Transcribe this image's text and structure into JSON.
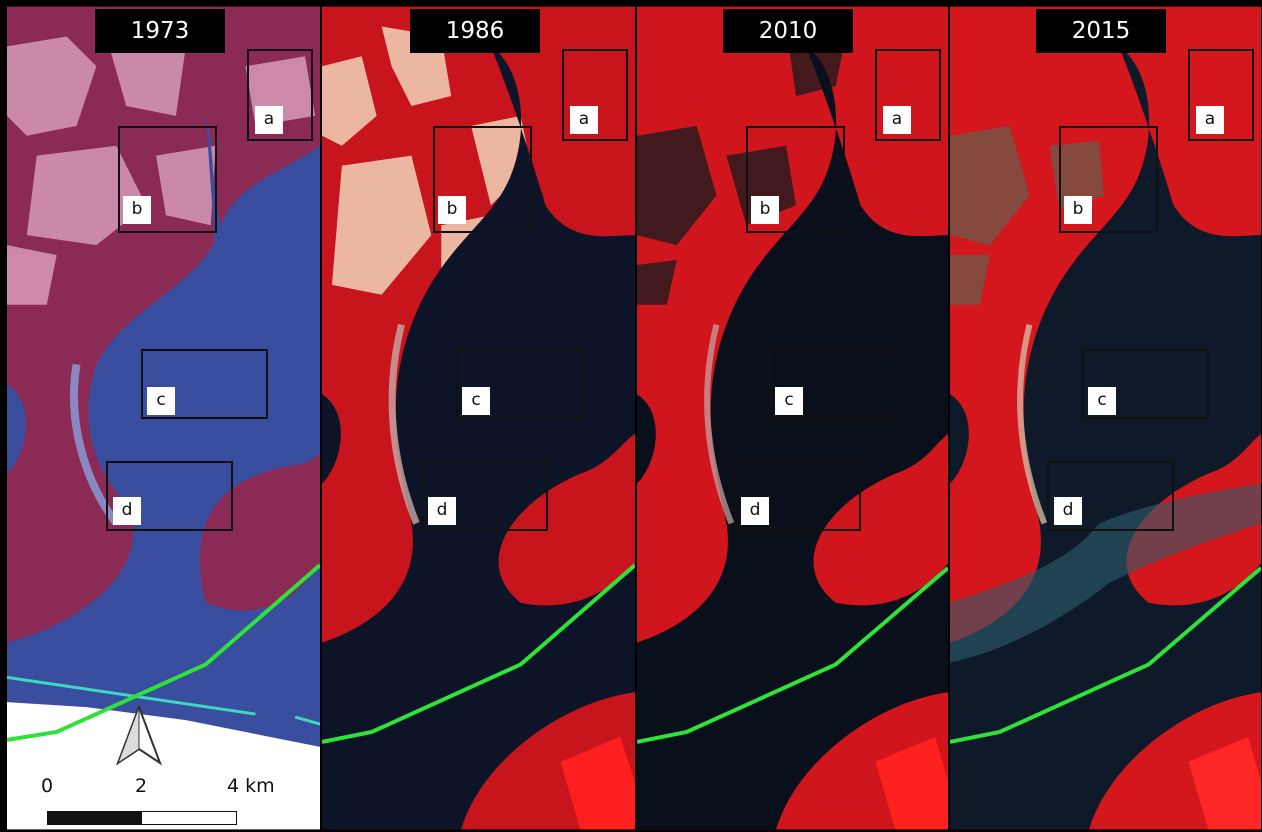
{
  "panels": [
    {
      "year": "1973"
    },
    {
      "year": "1986"
    },
    {
      "year": "2010"
    },
    {
      "year": "2015"
    }
  ],
  "aoi_labels": [
    "a",
    "b",
    "c",
    "d"
  ],
  "scale": {
    "ticks": [
      "0",
      "2",
      "4 km"
    ]
  },
  "colors": {
    "vegetation_1973": "#8a2a55",
    "water_1973": "#3a4ea0",
    "vegetation_false_color": "#d0151c",
    "water_dark": "#0d1428",
    "boundary_line": "#2fe23a",
    "bare_soil": "#f0c9b0"
  },
  "icons": [
    "north-arrow-icon"
  ]
}
